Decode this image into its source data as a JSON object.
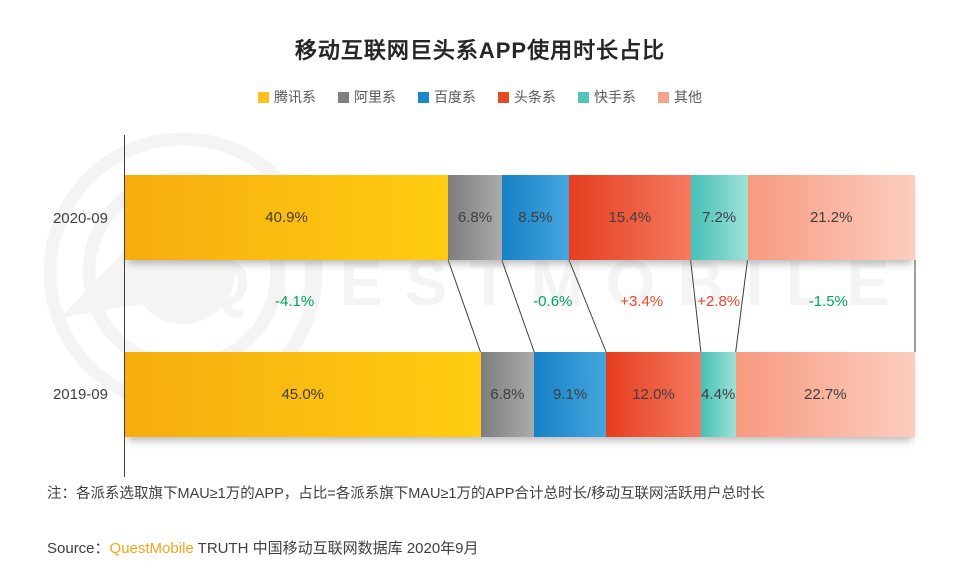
{
  "title": "移动互联网巨头系APP使用时长占比",
  "note": "注：各派系选取旗下MAU≥1万的APP，占比=各派系旗下MAU≥1万的APP合计总时长/移动互联网活跃用户总时长",
  "source": {
    "prefix": "Source：",
    "brand": "QuestMobile",
    "brand_color": "#F7A21B",
    "suffix": "TRUTH 中国移动互联网数据库 2020年9月"
  },
  "watermark": {
    "text": "QUESTMOBILE"
  },
  "axis_color": "#3d3d3d",
  "chart_data": {
    "type": "bar",
    "variant": "stacked-horizontal-comparison",
    "categories": [
      "2020-09",
      "2019-09"
    ],
    "value_suffix": "%",
    "series": [
      {
        "name": "腾讯系",
        "color": "#FFC01E",
        "grad": [
          "#F6AD0F",
          "#FFCC11"
        ],
        "values": [
          40.9,
          45.0
        ]
      },
      {
        "name": "阿里系",
        "color": "#7F7F7F",
        "grad": [
          "#7D7D7D",
          "#ABABAB"
        ],
        "values": [
          6.8,
          6.8
        ]
      },
      {
        "name": "百度系",
        "color": "#1E87C8",
        "grad": [
          "#1581C6",
          "#46A6DD"
        ],
        "values": [
          8.5,
          9.1
        ]
      },
      {
        "name": "头条系",
        "color": "#E64A22",
        "grad": [
          "#E63D1F",
          "#F47A60"
        ],
        "values": [
          15.4,
          12.0
        ]
      },
      {
        "name": "快手系",
        "color": "#52C5BA",
        "grad": [
          "#45C1B6",
          "#9FE0D8"
        ],
        "values": [
          7.2,
          4.4
        ]
      },
      {
        "name": "其他",
        "color": "#F5A28A",
        "grad": [
          "#F89A7F",
          "#FCCDC0"
        ],
        "values": [
          21.2,
          22.7
        ]
      }
    ],
    "changes": [
      {
        "label": "-4.1%",
        "type": "neg"
      },
      null,
      {
        "label": "-0.6%",
        "type": "neg"
      },
      {
        "label": "+3.4%",
        "type": "pos"
      },
      {
        "label": "+2.8%",
        "type": "pos"
      },
      {
        "label": "-1.5%",
        "type": "neg"
      }
    ],
    "change_colors": {
      "neg": "#00A65A",
      "pos": "#E8492B"
    },
    "label_color": "#3f3f3f",
    "legend_position": "top",
    "grid": false
  }
}
